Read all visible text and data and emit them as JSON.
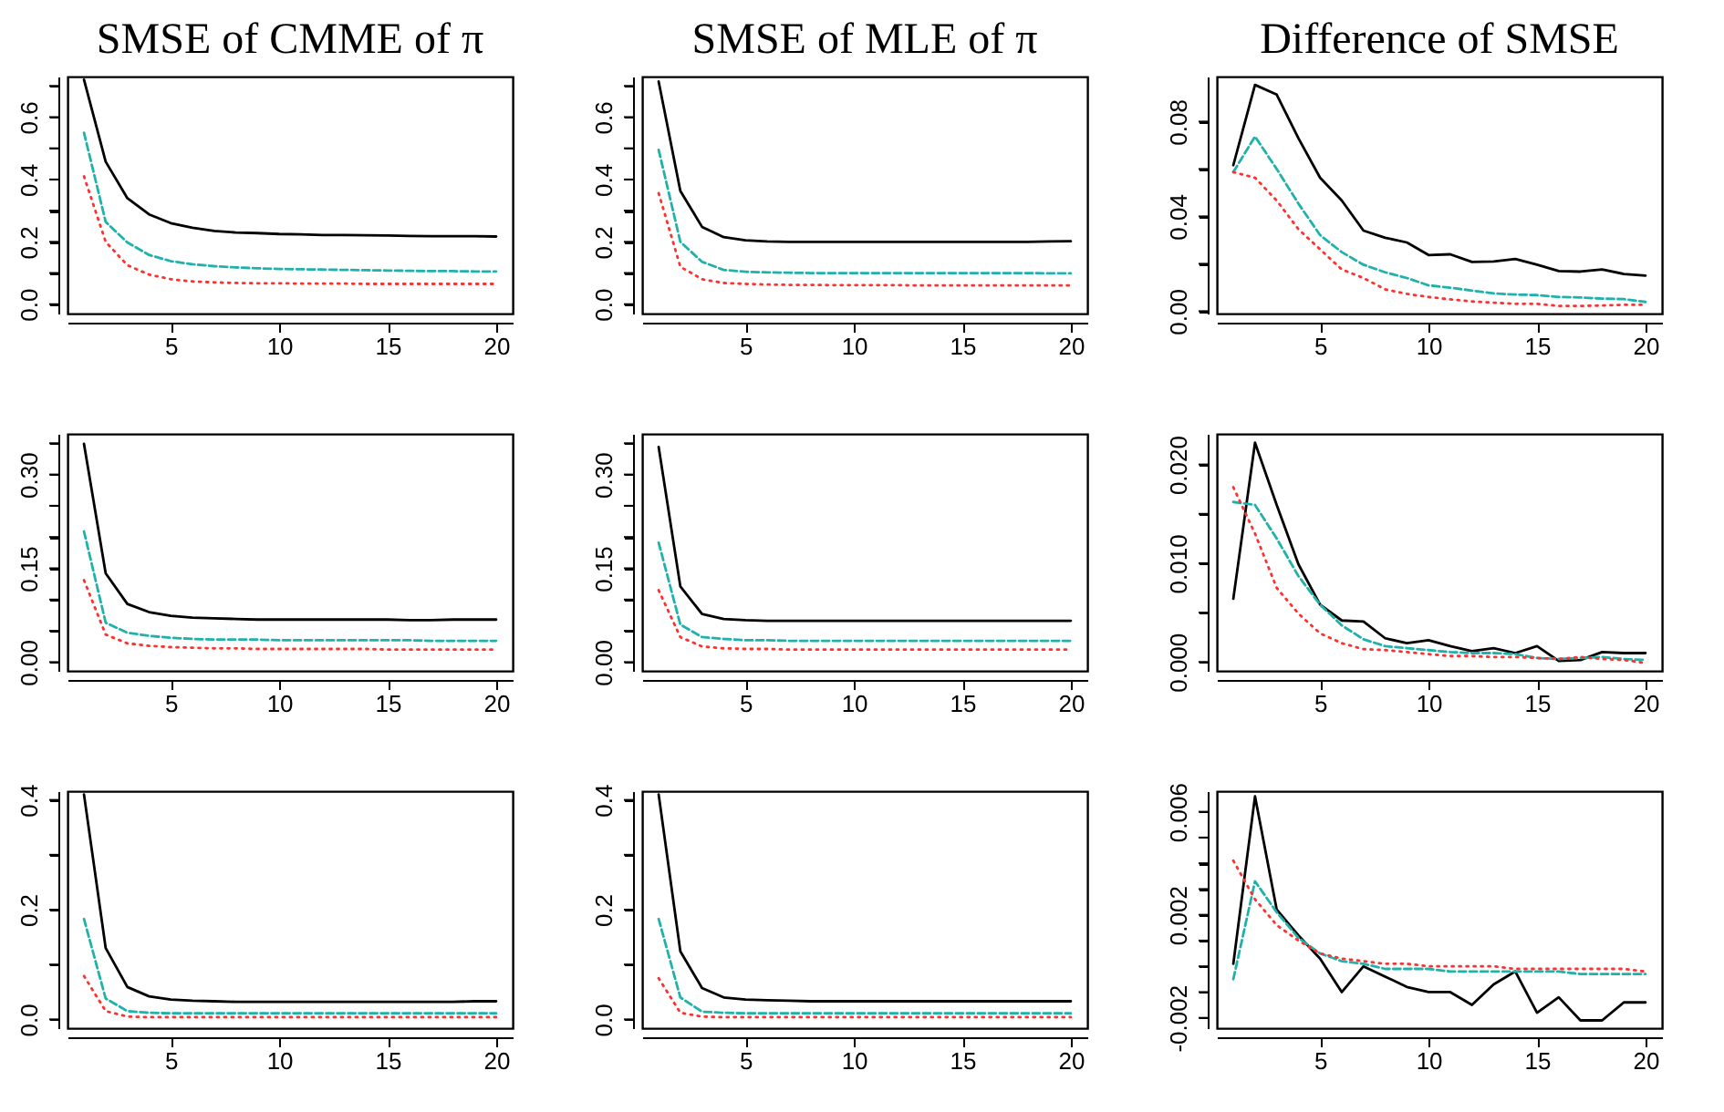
{
  "chart_data": [
    {
      "type": "line",
      "title": "SMSE of CMME of π",
      "x": [
        1,
        2,
        3,
        4,
        5,
        6,
        7,
        8,
        9,
        10,
        11,
        12,
        13,
        14,
        15,
        16,
        17,
        18,
        19,
        20
      ],
      "xlim": [
        0.24,
        20.76
      ],
      "xticks": [
        5,
        10,
        15,
        20
      ],
      "ylim": [
        -0.03,
        0.73
      ],
      "yticks": [
        {
          "value": 0,
          "label": "0.0"
        },
        {
          "value": 0.1,
          "label": null
        },
        0.2,
        {
          "value": 0.3,
          "label": null
        },
        0.4,
        {
          "value": 0.5,
          "label": null
        },
        0.6,
        {
          "value": 0.7,
          "label": null
        }
      ],
      "series": [
        {
          "color": "#000000",
          "line_style": "solid",
          "values": [
            0.72,
            0.457,
            0.34,
            0.288,
            0.26,
            0.245,
            0.235,
            0.23,
            0.228,
            0.225,
            0.224,
            0.222,
            0.222,
            0.221,
            0.22,
            0.219,
            0.218,
            0.218,
            0.218,
            0.217
          ]
        },
        {
          "color": "#20b2aa",
          "line_style": "dashed",
          "values": [
            0.55,
            0.264,
            0.198,
            0.158,
            0.138,
            0.128,
            0.122,
            0.118,
            0.115,
            0.113,
            0.112,
            0.111,
            0.11,
            0.109,
            0.108,
            0.107,
            0.106,
            0.106,
            0.105,
            0.105
          ]
        },
        {
          "color": "#ff3030",
          "line_style": "dotted",
          "values": [
            0.41,
            0.2,
            0.125,
            0.095,
            0.08,
            0.073,
            0.07,
            0.068,
            0.067,
            0.067,
            0.066,
            0.066,
            0.066,
            0.065,
            0.065,
            0.065,
            0.065,
            0.065,
            0.065,
            0.065
          ]
        }
      ]
    },
    {
      "type": "line",
      "title": "SMSE of MLE of π",
      "x": [
        1,
        2,
        3,
        4,
        5,
        6,
        7,
        8,
        9,
        10,
        11,
        12,
        13,
        14,
        15,
        16,
        17,
        18,
        19,
        20
      ],
      "xlim": [
        0.24,
        20.76
      ],
      "xticks": [
        5,
        10,
        15,
        20
      ],
      "ylim": [
        -0.03,
        0.73
      ],
      "yticks": [
        {
          "value": 0,
          "label": "0.0"
        },
        {
          "value": 0.1,
          "label": null
        },
        0.2,
        {
          "value": 0.3,
          "label": null
        },
        0.4,
        {
          "value": 0.5,
          "label": null
        },
        0.6,
        {
          "value": 0.7,
          "label": null
        }
      ],
      "series": [
        {
          "color": "#000000",
          "line_style": "solid",
          "values": [
            0.714,
            0.363,
            0.248,
            0.215,
            0.205,
            0.201,
            0.2,
            0.2,
            0.2,
            0.2,
            0.2,
            0.2,
            0.2,
            0.2,
            0.2,
            0.2,
            0.2,
            0.2,
            0.201,
            0.202
          ]
        },
        {
          "color": "#20b2aa",
          "line_style": "dashed",
          "values": [
            0.495,
            0.2,
            0.136,
            0.11,
            0.104,
            0.102,
            0.101,
            0.1,
            0.1,
            0.1,
            0.1,
            0.1,
            0.1,
            0.1,
            0.1,
            0.1,
            0.1,
            0.1,
            0.099,
            0.099
          ]
        },
        {
          "color": "#ff3030",
          "line_style": "dotted",
          "values": [
            0.356,
            0.12,
            0.08,
            0.068,
            0.065,
            0.063,
            0.062,
            0.062,
            0.061,
            0.061,
            0.061,
            0.061,
            0.06,
            0.06,
            0.06,
            0.06,
            0.06,
            0.06,
            0.06,
            0.06
          ]
        }
      ]
    },
    {
      "type": "line",
      "title": "Difference of SMSE",
      "x": [
        1,
        2,
        3,
        4,
        5,
        6,
        7,
        8,
        9,
        10,
        11,
        12,
        13,
        14,
        15,
        16,
        17,
        18,
        19,
        20
      ],
      "xlim": [
        0.24,
        20.76
      ],
      "xticks": [
        5,
        10,
        15,
        20
      ],
      "ylim": [
        -0.001,
        0.099
      ],
      "yticks": [
        {
          "value": 0,
          "label": "0.00"
        },
        {
          "value": 0.02,
          "label": null
        },
        0.04,
        {
          "value": 0.06,
          "label": null
        },
        0.08
      ],
      "series": [
        {
          "color": "#000000",
          "line_style": "solid",
          "values": [
            0.0616,
            0.0955,
            0.0914,
            0.073,
            0.0563,
            0.0467,
            0.034,
            0.031,
            0.029,
            0.0237,
            0.024,
            0.0208,
            0.021,
            0.022,
            0.0196,
            0.0169,
            0.0167,
            0.0176,
            0.0157,
            0.015
          ]
        },
        {
          "color": "#20b2aa",
          "line_style": "dashed",
          "values": [
            0.0587,
            0.0737,
            0.06,
            0.0454,
            0.0321,
            0.0249,
            0.0196,
            0.0164,
            0.014,
            0.0109,
            0.0099,
            0.0087,
            0.0075,
            0.007,
            0.0068,
            0.006,
            0.0058,
            0.0053,
            0.0051,
            0.0039
          ]
        },
        {
          "color": "#ff3030",
          "line_style": "dotted",
          "values": [
            0.0587,
            0.0563,
            0.0467,
            0.0346,
            0.0261,
            0.0176,
            0.014,
            0.0092,
            0.0073,
            0.006,
            0.005,
            0.0041,
            0.0036,
            0.0031,
            0.0031,
            0.0022,
            0.0022,
            0.0024,
            0.0027,
            0.0027
          ]
        }
      ]
    },
    {
      "type": "line",
      "x": [
        1,
        2,
        3,
        4,
        5,
        6,
        7,
        8,
        9,
        10,
        11,
        12,
        13,
        14,
        15,
        16,
        17,
        18,
        19,
        20
      ],
      "xlim": [
        0.24,
        20.76
      ],
      "xticks": [
        5,
        10,
        15,
        20
      ],
      "ylim": [
        -0.014,
        0.365
      ],
      "yticks": [
        {
          "value": 0,
          "label": "0.00"
        },
        {
          "value": 0.05,
          "label": null
        },
        {
          "value": 0.1,
          "label": null
        },
        0.15,
        {
          "value": 0.2,
          "label": null
        },
        {
          "value": 0.25,
          "label": null
        },
        {
          "value": 0.3,
          "label": "0.30"
        },
        {
          "value": 0.35,
          "label": null
        }
      ],
      "series": [
        {
          "color": "#000000",
          "line_style": "solid",
          "values": [
            0.349,
            0.142,
            0.093,
            0.08,
            0.074,
            0.071,
            0.07,
            0.069,
            0.068,
            0.068,
            0.068,
            0.068,
            0.068,
            0.068,
            0.068,
            0.067,
            0.067,
            0.068,
            0.068,
            0.068
          ]
        },
        {
          "color": "#20b2aa",
          "line_style": "dashed",
          "values": [
            0.209,
            0.063,
            0.047,
            0.042,
            0.039,
            0.037,
            0.036,
            0.036,
            0.036,
            0.035,
            0.035,
            0.035,
            0.035,
            0.035,
            0.035,
            0.035,
            0.034,
            0.034,
            0.034,
            0.034
          ]
        },
        {
          "color": "#ff3030",
          "line_style": "dotted",
          "values": [
            0.131,
            0.044,
            0.03,
            0.026,
            0.024,
            0.023,
            0.022,
            0.022,
            0.021,
            0.021,
            0.021,
            0.021,
            0.021,
            0.021,
            0.02,
            0.02,
            0.02,
            0.02,
            0.02,
            0.02
          ]
        }
      ]
    },
    {
      "type": "line",
      "x": [
        1,
        2,
        3,
        4,
        5,
        6,
        7,
        8,
        9,
        10,
        11,
        12,
        13,
        14,
        15,
        16,
        17,
        18,
        19,
        20
      ],
      "xlim": [
        0.24,
        20.76
      ],
      "xticks": [
        5,
        10,
        15,
        20
      ],
      "ylim": [
        -0.014,
        0.365
      ],
      "yticks": [
        {
          "value": 0,
          "label": "0.00"
        },
        {
          "value": 0.05,
          "label": null
        },
        {
          "value": 0.1,
          "label": null
        },
        0.15,
        {
          "value": 0.2,
          "label": null
        },
        {
          "value": 0.25,
          "label": null
        },
        {
          "value": 0.3,
          "label": "0.30"
        },
        {
          "value": 0.35,
          "label": null
        }
      ],
      "series": [
        {
          "color": "#000000",
          "line_style": "solid",
          "values": [
            0.344,
            0.121,
            0.077,
            0.069,
            0.067,
            0.066,
            0.066,
            0.066,
            0.066,
            0.066,
            0.066,
            0.066,
            0.066,
            0.066,
            0.066,
            0.066,
            0.066,
            0.066,
            0.066,
            0.066
          ]
        },
        {
          "color": "#20b2aa",
          "line_style": "dashed",
          "values": [
            0.191,
            0.06,
            0.04,
            0.037,
            0.035,
            0.035,
            0.034,
            0.034,
            0.034,
            0.034,
            0.034,
            0.034,
            0.034,
            0.034,
            0.034,
            0.034,
            0.034,
            0.034,
            0.034,
            0.034
          ]
        },
        {
          "color": "#ff3030",
          "line_style": "dotted",
          "values": [
            0.115,
            0.04,
            0.025,
            0.022,
            0.021,
            0.021,
            0.02,
            0.02,
            0.02,
            0.02,
            0.02,
            0.02,
            0.02,
            0.02,
            0.02,
            0.02,
            0.02,
            0.02,
            0.02,
            0.02
          ]
        }
      ]
    },
    {
      "type": "line",
      "x": [
        1,
        2,
        3,
        4,
        5,
        6,
        7,
        8,
        9,
        10,
        11,
        12,
        13,
        14,
        15,
        16,
        17,
        18,
        19,
        20
      ],
      "xlim": [
        0.24,
        20.76
      ],
      "xticks": [
        5,
        10,
        15,
        20
      ],
      "ylim": [
        -0.0009,
        0.0231
      ],
      "yticks": [
        {
          "value": 0,
          "label": "0.000"
        },
        {
          "value": 0.005,
          "label": null
        },
        {
          "value": 0.01,
          "label": "0.010"
        },
        {
          "value": 0.015,
          "label": null
        },
        {
          "value": 0.02,
          "label": "0.020"
        }
      ],
      "series": [
        {
          "color": "#000000",
          "line_style": "solid",
          "values": [
            0.0064,
            0.0222,
            0.0159,
            0.0099,
            0.0058,
            0.0042,
            0.0041,
            0.0024,
            0.0019,
            0.0022,
            0.0016,
            0.0011,
            0.0014,
            0.0009,
            0.0016,
            0.0001,
            0.0002,
            0.001,
            0.0009,
            0.0009
          ]
        },
        {
          "color": "#20b2aa",
          "line_style": "dashed",
          "values": [
            0.0162,
            0.0159,
            0.0125,
            0.0087,
            0.0058,
            0.0037,
            0.0023,
            0.0016,
            0.0014,
            0.0012,
            0.001,
            0.0009,
            0.0009,
            0.0008,
            0.0004,
            0.0003,
            0.0004,
            0.0005,
            0.0003,
            0.0002
          ]
        },
        {
          "color": "#ff3030",
          "line_style": "dotted",
          "values": [
            0.0177,
            0.013,
            0.0075,
            0.0049,
            0.0029,
            0.0019,
            0.0013,
            0.0012,
            0.001,
            0.0008,
            0.0006,
            0.0006,
            0.0005,
            0.0005,
            0.0004,
            0.0003,
            0.0005,
            0.0003,
            0.0002,
            -0.0001
          ]
        }
      ]
    },
    {
      "type": "line",
      "x": [
        1,
        2,
        3,
        4,
        5,
        6,
        7,
        8,
        9,
        10,
        11,
        12,
        13,
        14,
        15,
        16,
        17,
        18,
        19,
        20
      ],
      "xlim": [
        0.24,
        20.76
      ],
      "xticks": [
        5,
        10,
        15,
        20
      ],
      "ylim": [
        -0.016,
        0.416
      ],
      "yticks": [
        {
          "value": 0,
          "label": "0.0"
        },
        {
          "value": 0.1,
          "label": null
        },
        0.2,
        {
          "value": 0.3,
          "label": null
        },
        0.4
      ],
      "series": [
        {
          "color": "#000000",
          "line_style": "solid",
          "values": [
            0.41,
            0.13,
            0.059,
            0.042,
            0.036,
            0.034,
            0.033,
            0.032,
            0.032,
            0.032,
            0.032,
            0.032,
            0.032,
            0.032,
            0.032,
            0.032,
            0.032,
            0.032,
            0.033,
            0.033
          ]
        },
        {
          "color": "#20b2aa",
          "line_style": "dashed",
          "values": [
            0.183,
            0.038,
            0.015,
            0.012,
            0.011,
            0.011,
            0.011,
            0.011,
            0.011,
            0.011,
            0.011,
            0.011,
            0.011,
            0.011,
            0.011,
            0.011,
            0.011,
            0.011,
            0.011,
            0.011
          ]
        },
        {
          "color": "#ff3030",
          "line_style": "dotted",
          "values": [
            0.079,
            0.015,
            0.005,
            0.004,
            0.004,
            0.004,
            0.004,
            0.004,
            0.004,
            0.004,
            0.004,
            0.004,
            0.004,
            0.004,
            0.004,
            0.004,
            0.004,
            0.004,
            0.004,
            0.004
          ]
        }
      ]
    },
    {
      "type": "line",
      "x": [
        1,
        2,
        3,
        4,
        5,
        6,
        7,
        8,
        9,
        10,
        11,
        12,
        13,
        14,
        15,
        16,
        17,
        18,
        19,
        20
      ],
      "xlim": [
        0.24,
        20.76
      ],
      "xticks": [
        5,
        10,
        15,
        20
      ],
      "ylim": [
        -0.016,
        0.416
      ],
      "yticks": [
        {
          "value": 0,
          "label": "0.0"
        },
        {
          "value": 0.1,
          "label": null
        },
        0.2,
        {
          "value": 0.3,
          "label": null
        },
        0.4
      ],
      "series": [
        {
          "color": "#000000",
          "line_style": "solid",
          "values": [
            0.41,
            0.124,
            0.057,
            0.04,
            0.036,
            0.035,
            0.034,
            0.033,
            0.033,
            0.033,
            0.033,
            0.033,
            0.033,
            0.033,
            0.033,
            0.033,
            0.033,
            0.033,
            0.033,
            0.033
          ]
        },
        {
          "color": "#20b2aa",
          "line_style": "dashed",
          "values": [
            0.183,
            0.04,
            0.014,
            0.012,
            0.011,
            0.011,
            0.011,
            0.011,
            0.011,
            0.011,
            0.011,
            0.011,
            0.011,
            0.011,
            0.011,
            0.011,
            0.011,
            0.011,
            0.011,
            0.011
          ]
        },
        {
          "color": "#ff3030",
          "line_style": "dotted",
          "values": [
            0.075,
            0.012,
            0.005,
            0.004,
            0.004,
            0.004,
            0.004,
            0.004,
            0.004,
            0.004,
            0.004,
            0.004,
            0.004,
            0.004,
            0.004,
            0.004,
            0.004,
            0.004,
            0.004,
            0.004
          ]
        }
      ]
    },
    {
      "type": "line",
      "x": [
        1,
        2,
        3,
        4,
        5,
        6,
        7,
        8,
        9,
        10,
        11,
        12,
        13,
        14,
        15,
        16,
        17,
        18,
        19,
        20
      ],
      "xlim": [
        0.24,
        20.76
      ],
      "xticks": [
        5,
        10,
        15,
        20
      ],
      "ylim": [
        -0.0024,
        0.0068
      ],
      "yticks": [
        -0.002,
        {
          "value": -0.001,
          "label": null
        },
        {
          "value": 0,
          "label": null
        },
        {
          "value": 0.001,
          "label": null
        },
        0.002,
        {
          "value": 0.003,
          "label": null
        },
        {
          "value": 0.004,
          "label": null
        },
        {
          "value": 0.005,
          "label": null
        },
        0.006
      ],
      "series": [
        {
          "color": "#000000",
          "line_style": "solid",
          "values": [
            0.0001,
            0.0066,
            0.0022,
            0.0012,
            0.0003,
            -0.001,
            0,
            -0.0004,
            -0.0008,
            -0.001,
            -0.001,
            -0.0015,
            -0.0007,
            -0.0002,
            -0.0018,
            -0.0012,
            -0.0021,
            -0.0021,
            -0.0014,
            -0.0014
          ]
        },
        {
          "color": "#20b2aa",
          "line_style": "dashed",
          "values": [
            -0.0005,
            0.0033,
            0.0021,
            0.0011,
            0.0005,
            0.0002,
            0.0001,
            -0.0001,
            -0.0001,
            -0.0001,
            -0.0002,
            -0.0002,
            -0.0002,
            -0.0002,
            -0.0002,
            -0.0002,
            -0.0003,
            -0.0003,
            -0.0003,
            -0.0003
          ]
        },
        {
          "color": "#ff3030",
          "line_style": "dotted",
          "values": [
            0.0041,
            0.0026,
            0.0016,
            0.001,
            0.0005,
            0.0003,
            0.0002,
            0.0001,
            0.0001,
            0,
            0,
            0,
            0,
            -0.0001,
            -0.0001,
            -0.0001,
            -0.0001,
            -0.0001,
            -0.0001,
            -0.0002
          ]
        }
      ]
    }
  ]
}
